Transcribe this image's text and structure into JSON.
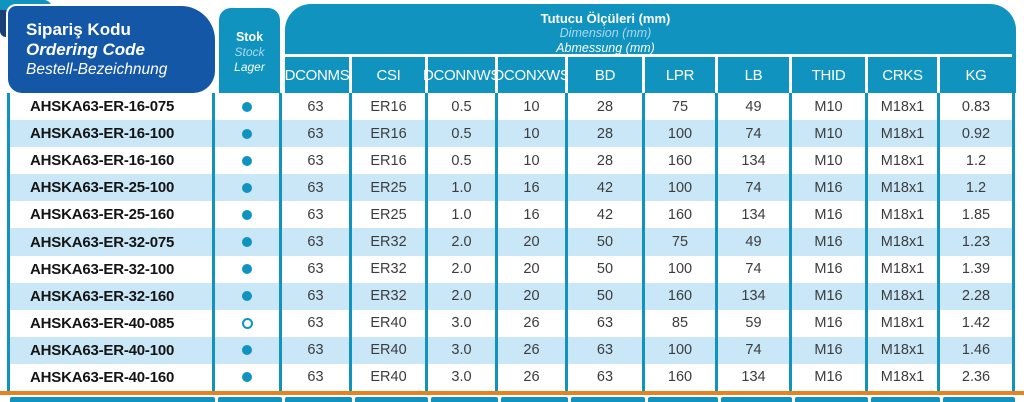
{
  "colors": {
    "teal": "#1193c0",
    "blue": "#1457a7",
    "navy": "#1c3e77",
    "row-alt": "#c9e7f6",
    "orange": "#e8821e",
    "light-text": "#a9d9ec",
    "data-text": "#3c3c3c",
    "code-text": "#141414"
  },
  "table_header": {
    "ordering_code": {
      "line1": "Sipariş Kodu",
      "line2": "Ordering Code",
      "line3": "Bestell-Bezeichnung"
    },
    "stock": {
      "line1": "Stok",
      "line2": "Stock",
      "line3": "Lager"
    },
    "dimensions_title": {
      "line1": "Tutucu Ölçüleri (mm)",
      "line2": "Dimension (mm)",
      "line3": "Abmessung (mm)"
    },
    "columns": [
      "DCONMS",
      "CSI",
      "DCONNWS",
      "DCONXWS",
      "BD",
      "LPR",
      "LB",
      "THID",
      "CRKS",
      "KG"
    ]
  },
  "rows": [
    {
      "code": "AHSKA63-ER-16-075",
      "stock": "filled",
      "values": [
        "63",
        "ER16",
        "0.5",
        "10",
        "28",
        "75",
        "49",
        "M10",
        "M18x1",
        "0.83"
      ]
    },
    {
      "code": "AHSKA63-ER-16-100",
      "stock": "filled",
      "values": [
        "63",
        "ER16",
        "0.5",
        "10",
        "28",
        "100",
        "74",
        "M10",
        "M18x1",
        "0.92"
      ]
    },
    {
      "code": "AHSKA63-ER-16-160",
      "stock": "filled",
      "values": [
        "63",
        "ER16",
        "0.5",
        "10",
        "28",
        "160",
        "134",
        "M10",
        "M18x1",
        "1.2"
      ]
    },
    {
      "code": "AHSKA63-ER-25-100",
      "stock": "filled",
      "values": [
        "63",
        "ER25",
        "1.0",
        "16",
        "42",
        "100",
        "74",
        "M16",
        "M18x1",
        "1.2"
      ]
    },
    {
      "code": "AHSKA63-ER-25-160",
      "stock": "filled",
      "values": [
        "63",
        "ER25",
        "1.0",
        "16",
        "42",
        "160",
        "134",
        "M16",
        "M18x1",
        "1.85"
      ]
    },
    {
      "code": "AHSKA63-ER-32-075",
      "stock": "filled",
      "values": [
        "63",
        "ER32",
        "2.0",
        "20",
        "50",
        "75",
        "49",
        "M16",
        "M18x1",
        "1.23"
      ]
    },
    {
      "code": "AHSKA63-ER-32-100",
      "stock": "filled",
      "values": [
        "63",
        "ER32",
        "2.0",
        "20",
        "50",
        "100",
        "74",
        "M16",
        "M18x1",
        "1.39"
      ]
    },
    {
      "code": "AHSKA63-ER-32-160",
      "stock": "filled",
      "values": [
        "63",
        "ER32",
        "2.0",
        "20",
        "50",
        "160",
        "134",
        "M16",
        "M18x1",
        "2.28"
      ]
    },
    {
      "code": "AHSKA63-ER-40-085",
      "stock": "hollow",
      "values": [
        "63",
        "ER40",
        "3.0",
        "26",
        "63",
        "85",
        "59",
        "M16",
        "M18x1",
        "1.42"
      ]
    },
    {
      "code": "AHSKA63-ER-40-100",
      "stock": "filled",
      "values": [
        "63",
        "ER40",
        "3.0",
        "26",
        "63",
        "100",
        "74",
        "M16",
        "M18x1",
        "1.46"
      ]
    },
    {
      "code": "AHSKA63-ER-40-160",
      "stock": "filled",
      "values": [
        "63",
        "ER40",
        "3.0",
        "26",
        "63",
        "160",
        "134",
        "M16",
        "M18x1",
        "2.36"
      ]
    }
  ]
}
